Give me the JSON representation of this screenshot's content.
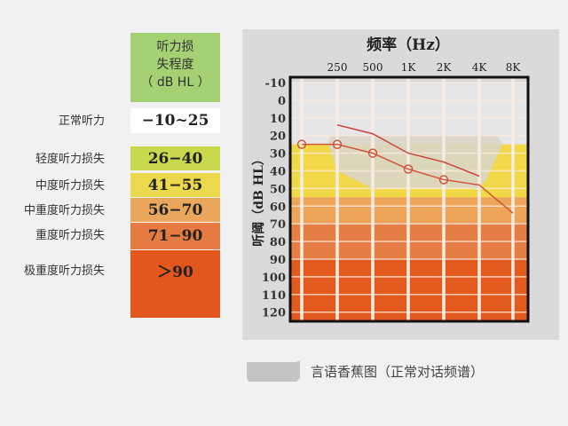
{
  "legend_table": {
    "header": [
      "听力损",
      "失程度",
      "（ dB HL ）"
    ],
    "rows": [
      {
        "label": "正常听力",
        "range": "−10~25",
        "color": "#ffffff"
      },
      {
        "label": "轻度听力损失",
        "range": "26−40",
        "color": "#c9d84c"
      },
      {
        "label": "中度听力损失",
        "range": "41−55",
        "color": "#ecd84c"
      },
      {
        "label": "中重度听力损失",
        "range": "56−70",
        "color": "#e9a65c"
      },
      {
        "label": "重度听力损失",
        "range": "71−90",
        "color": "#e57a42"
      },
      {
        "label": "极重度听力损失",
        "range": "＞90",
        "color": "#e3561e"
      }
    ]
  },
  "chart_data": {
    "type": "line",
    "title": "频率（Hz）",
    "xlabel": "频率（Hz）",
    "ylabel": "听阈（dB HL）",
    "x_categories": [
      "",
      "250",
      "500",
      "1K",
      "2K",
      "4K",
      "8K"
    ],
    "y_ticks": [
      -10,
      0,
      10,
      20,
      30,
      40,
      50,
      60,
      70,
      80,
      90,
      100,
      110,
      120
    ],
    "ylim": [
      -10,
      120
    ],
    "y_inverted": true,
    "grid": true,
    "bands": [
      {
        "from": -10,
        "to": 25,
        "color": "#e6e6e6"
      },
      {
        "from": 25,
        "to": 55,
        "color": "#f0d848"
      },
      {
        "from": 55,
        "to": 70,
        "color": "#eda55a"
      },
      {
        "from": 70,
        "to": 90,
        "color": "#e57d45"
      },
      {
        "from": 90,
        "to": 125,
        "color": "#e35a1e"
      }
    ],
    "series": [
      {
        "marker": "circle",
        "color": "#d2553a",
        "points": [
          [
            0,
            25
          ],
          [
            1,
            25
          ],
          [
            2,
            30
          ],
          [
            3,
            39
          ],
          [
            4,
            45
          ],
          [
            5,
            48
          ],
          [
            6,
            64
          ]
        ]
      },
      {
        "marker": "none",
        "color": "#c8443a",
        "points": [
          [
            1,
            14
          ],
          [
            2,
            19
          ],
          [
            3,
            30
          ],
          [
            4,
            35
          ],
          [
            5,
            43
          ]
        ]
      }
    ],
    "speech_banana": {
      "color": "#d9d6c8",
      "label": "言语香蕉图（正常对话频谱）"
    }
  }
}
